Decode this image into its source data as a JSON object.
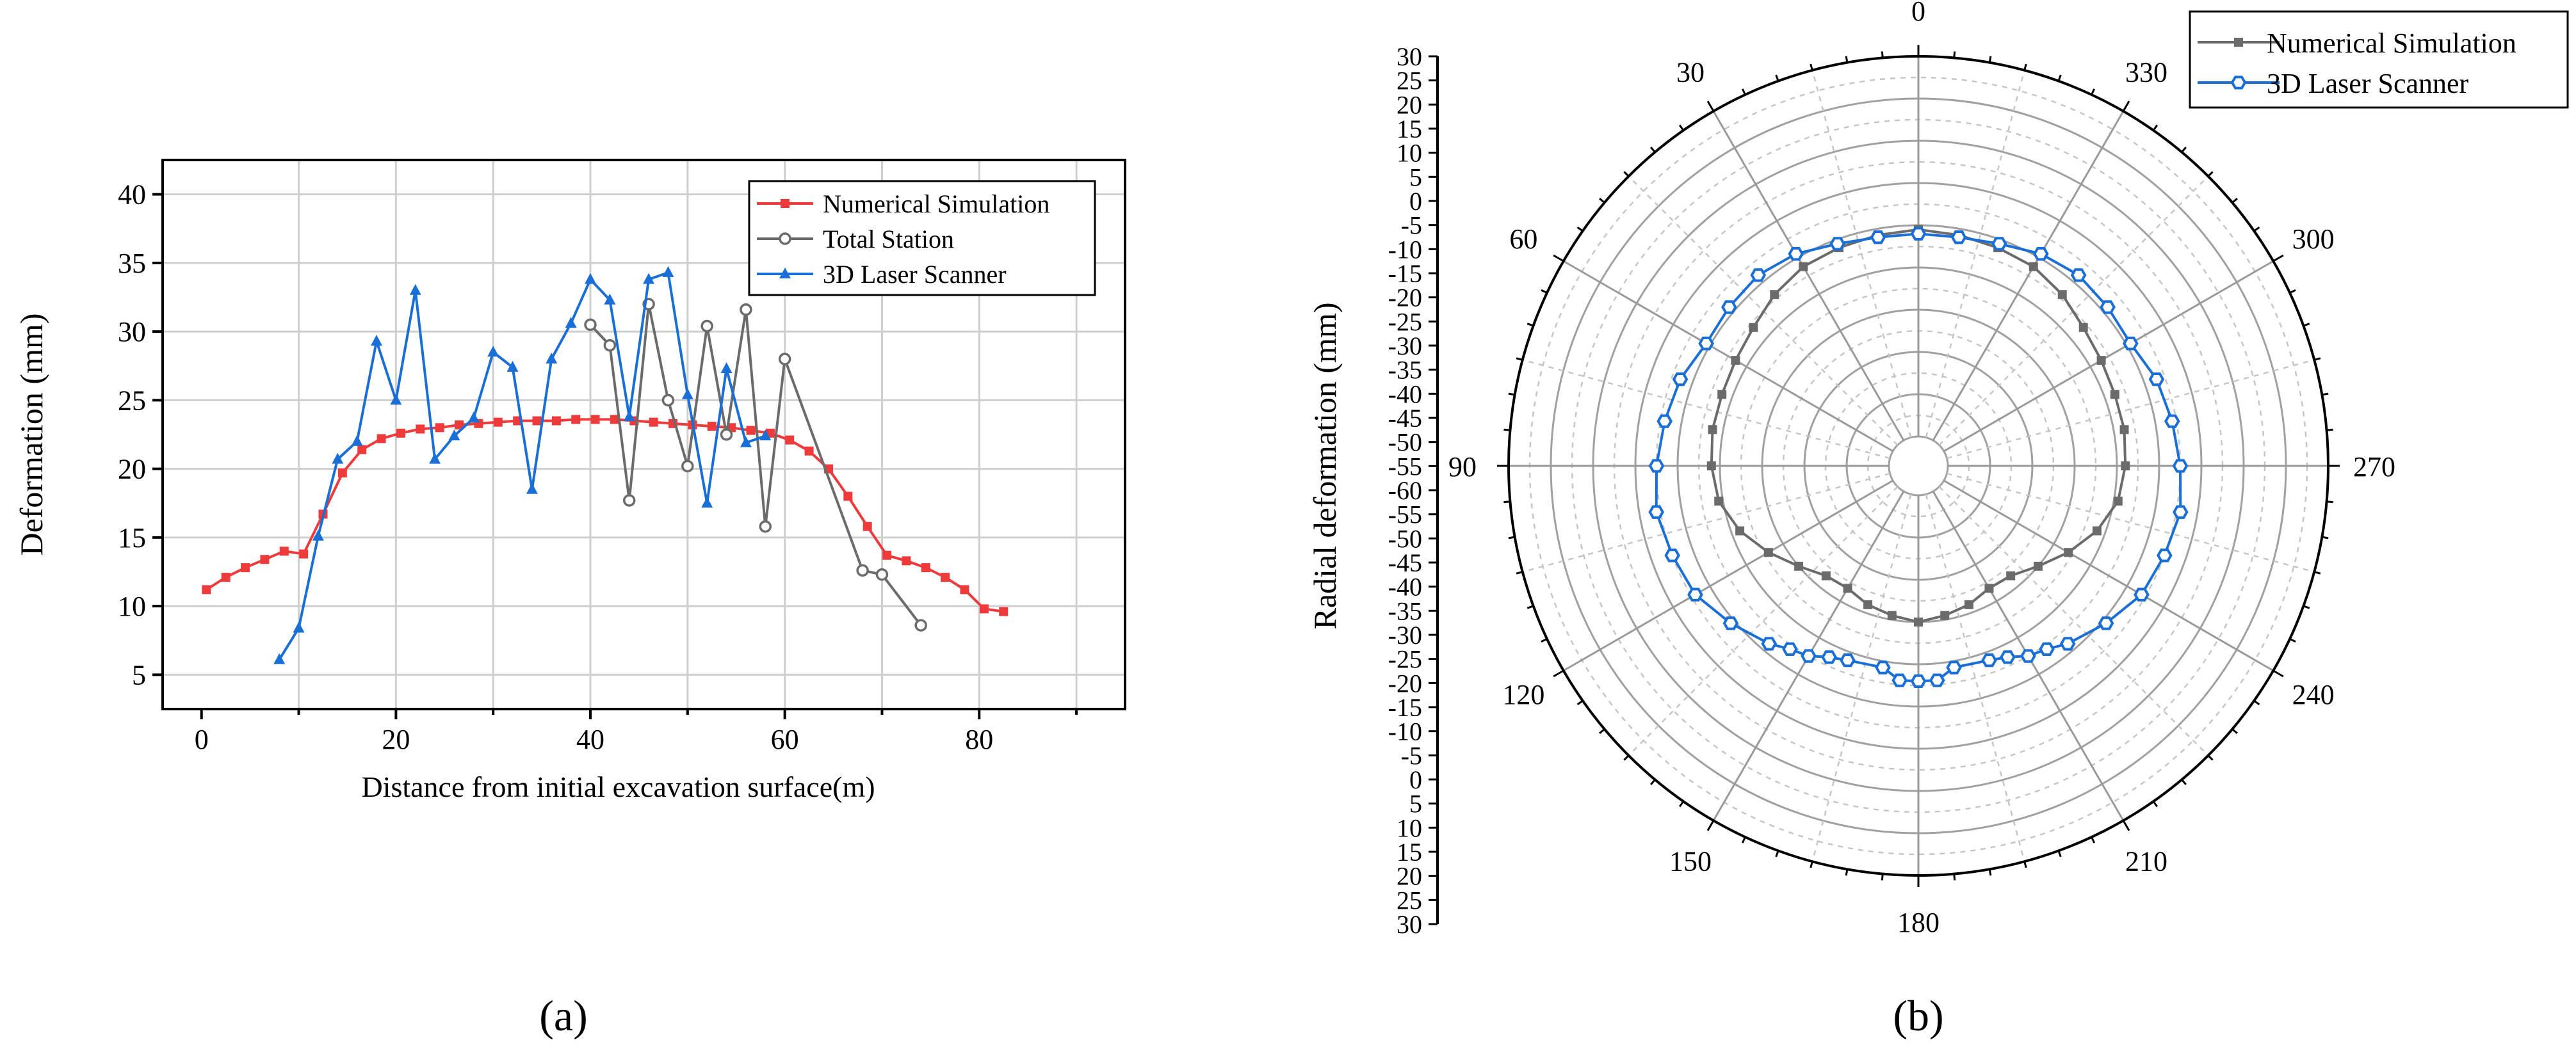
{
  "chart_data": [
    {
      "panel_label": "(a)",
      "type": "line",
      "xlabel": "Distance from initial excavation surface(m)",
      "ylabel": "Deformation (mm)",
      "xlim": [
        -4,
        95
      ],
      "ylim": [
        2.5,
        42.5
      ],
      "xticks": [
        0,
        20,
        40,
        60,
        80
      ],
      "yticks": [
        5,
        10,
        15,
        20,
        25,
        30,
        35,
        40
      ],
      "grid": true,
      "legend_position": "top-right",
      "series": [
        {
          "name": "Numerical Simulation",
          "color": "#ee3a3a",
          "marker": "square",
          "x": [
            0.5,
            2.5,
            4.5,
            6.5,
            8.5,
            10.5,
            12.5,
            14.5,
            16.5,
            18.5,
            20.5,
            22.5,
            24.5,
            26.5,
            28.5,
            30.5,
            32.5,
            34.5,
            36.5,
            38.5,
            40.5,
            42.5,
            44.5,
            46.5,
            48.5,
            50.5,
            52.5,
            54.5,
            56.5,
            58.5,
            60.5,
            62.5,
            64.5,
            66.5,
            68.5,
            70.5,
            72.5,
            74.5,
            76.5,
            78.5,
            80.5,
            82.5
          ],
          "y": [
            11.2,
            12.1,
            12.8,
            13.4,
            14.0,
            13.8,
            16.7,
            19.7,
            21.4,
            22.2,
            22.6,
            22.9,
            23.0,
            23.2,
            23.3,
            23.4,
            23.5,
            23.5,
            23.5,
            23.6,
            23.6,
            23.6,
            23.5,
            23.4,
            23.3,
            23.2,
            23.1,
            23.0,
            22.8,
            22.6,
            22.1,
            21.3,
            20.0,
            18.0,
            15.8,
            13.7,
            13.3,
            12.8,
            12.1,
            11.2,
            9.8,
            9.6
          ]
        },
        {
          "name": "Total Station",
          "color": "#6b6b6b",
          "marker": "circle-open",
          "x": [
            40,
            42,
            44,
            46,
            48,
            50,
            52,
            54,
            56,
            58,
            60,
            68,
            70,
            74
          ],
          "y": [
            30.5,
            29.0,
            17.7,
            32.0,
            25.0,
            20.2,
            30.4,
            22.5,
            31.6,
            15.8,
            28.0,
            12.6,
            12.3,
            8.6
          ]
        },
        {
          "name": "3D Laser Scanner",
          "color": "#1a6fd6",
          "marker": "triangle",
          "x": [
            8,
            10,
            12,
            14,
            16,
            18,
            20,
            22,
            24,
            26,
            28,
            30,
            32,
            34,
            36,
            38,
            40,
            42,
            44,
            46,
            48,
            50,
            52,
            54,
            56,
            58
          ],
          "y": [
            6.1,
            8.4,
            15.1,
            20.7,
            22.0,
            29.3,
            25.0,
            33.0,
            20.7,
            22.4,
            23.7,
            28.5,
            27.4,
            18.5,
            28.0,
            30.6,
            33.8,
            32.3,
            23.8,
            33.8,
            34.3,
            25.4,
            17.5,
            27.3,
            21.9,
            22.4
          ]
        }
      ]
    },
    {
      "panel_label": "(b)",
      "type": "polar-line",
      "ylabel": "Radial deformation (mm)",
      "angle_direction": "counterclockwise",
      "zero_angle_position": "top",
      "angle_ticks": [
        "0",
        "30",
        "60",
        "90",
        "120",
        "150",
        "180",
        "210",
        "240",
        "270",
        "300",
        "330"
      ],
      "radial_axis_ticks": [
        "30",
        "25",
        "20",
        "15",
        "10",
        "5",
        "0",
        "-5",
        "-10",
        "-15",
        "-20",
        "-25",
        "-30",
        "-35",
        "-40",
        "-45",
        "-50",
        "-55",
        "-60",
        "-55",
        "-50",
        "-45",
        "-40",
        "-35",
        "-30",
        "-25",
        "-20",
        "-15",
        "-10",
        "-5",
        "0",
        "5",
        "10",
        "15",
        "20",
        "25",
        "30"
      ],
      "radial_range": [
        -60,
        30
      ],
      "grid": true,
      "legend_position": "top-right",
      "series": [
        {
          "name": "Numerical Simulation",
          "color": "#6b6b6b",
          "marker": "square",
          "angle": [
            0,
            10,
            20,
            30,
            40,
            50,
            60,
            70,
            80,
            90,
            100,
            110,
            120,
            130,
            140,
            150,
            160,
            170,
            180,
            190,
            200,
            210,
            220,
            230,
            240,
            250,
            260,
            270,
            280,
            290,
            300,
            310,
            320,
            330,
            340,
            350
          ],
          "value": [
            -11,
            -11.5,
            -12,
            -12.5,
            -14,
            -16,
            -17,
            -17.5,
            -17.5,
            -18,
            -19,
            -22,
            -26,
            -30,
            -33,
            -33.5,
            -32,
            -31,
            -30,
            -31,
            -32,
            -33.5,
            -33,
            -30,
            -26,
            -22,
            -19,
            -18,
            -17.5,
            -17.5,
            -17,
            -16,
            -14,
            -12.5,
            -12,
            -11.5
          ]
        },
        {
          "name": "3D Laser Scanner",
          "color": "#1a6fd6",
          "marker": "hexagon-open",
          "angle": [
            0,
            10,
            20,
            30,
            40,
            50,
            60,
            70,
            80,
            90,
            100,
            110,
            120,
            130,
            140,
            145,
            150,
            155,
            160,
            170,
            175,
            180,
            185,
            190,
            200,
            205,
            210,
            215,
            220,
            230,
            240,
            250,
            260,
            270,
            280,
            290,
            300,
            310,
            320,
            330,
            340,
            350
          ],
          "value": [
            -12,
            -12,
            -11,
            -9,
            -8,
            -8.5,
            -9,
            -7,
            -6,
            -5,
            -4,
            -5,
            -6,
            -9,
            -12,
            -14,
            -15,
            -17,
            -18,
            -18.5,
            -16,
            -16,
            -16,
            -18.5,
            -18,
            -17,
            -15,
            -14,
            -12,
            -9,
            -6,
            -5,
            -4,
            -5,
            -6,
            -7,
            -9,
            -8.5,
            -8,
            -9,
            -11,
            -12
          ]
        }
      ]
    }
  ]
}
